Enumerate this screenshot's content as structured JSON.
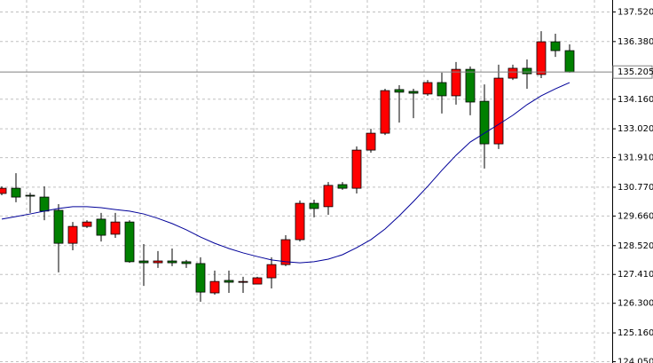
{
  "chart_data": {
    "type": "candlestick",
    "open": [
      130.53,
      130.73,
      130.46,
      130.39,
      129.88,
      128.61,
      129.26,
      129.54,
      128.96,
      129.43,
      127.93,
      127.86,
      127.93,
      127.9,
      127.83,
      126.7,
      127.18,
      127.14,
      127.04,
      127.28,
      127.79,
      128.75,
      130.15,
      130.02,
      130.87,
      130.73,
      132.2,
      132.85,
      134.53,
      134.46,
      134.36,
      134.8,
      134.29,
      135.31,
      134.08,
      132.44,
      134.97,
      135.35,
      135.11,
      136.37,
      136.03
    ],
    "high": [
      130.8,
      131.31,
      130.56,
      130.8,
      130.12,
      129.43,
      129.5,
      129.78,
      129.78,
      129.5,
      128.58,
      128.31,
      128.41,
      127.97,
      128.07,
      127.56,
      127.56,
      127.32,
      127.32,
      128.07,
      128.92,
      130.26,
      130.29,
      130.97,
      130.97,
      132.34,
      133.02,
      134.56,
      134.7,
      134.56,
      134.9,
      135.18,
      135.59,
      135.42,
      134.73,
      135.49,
      135.49,
      135.69,
      136.78,
      136.68,
      136.27
    ],
    "low": [
      130.46,
      130.19,
      129.78,
      129.5,
      127.49,
      128.34,
      129.2,
      128.68,
      128.82,
      127.86,
      126.97,
      127.66,
      127.73,
      127.66,
      126.36,
      126.63,
      126.7,
      126.7,
      127.04,
      126.87,
      127.73,
      128.68,
      129.61,
      129.71,
      130.67,
      130.53,
      132.1,
      132.78,
      133.26,
      133.43,
      134.29,
      133.61,
      133.95,
      133.54,
      131.49,
      132.24,
      134.9,
      134.56,
      134.97,
      135.79,
      135.18
    ],
    "close": [
      130.73,
      130.39,
      130.44,
      129.85,
      128.61,
      129.26,
      129.43,
      128.92,
      129.43,
      127.9,
      127.86,
      127.93,
      127.86,
      127.83,
      126.73,
      127.14,
      127.11,
      127.14,
      127.28,
      127.79,
      128.75,
      130.15,
      129.95,
      130.84,
      130.73,
      132.2,
      132.85,
      134.49,
      134.43,
      134.39,
      134.8,
      134.29,
      135.31,
      134.05,
      132.44,
      134.97,
      135.35,
      135.14,
      136.37,
      136.03,
      135.205
    ],
    "up_color": "#ff0000",
    "down_color": "#008000",
    "moving_average": {
      "color": "#000099",
      "values": [
        129.54,
        129.64,
        129.74,
        129.85,
        129.95,
        130.02,
        130.02,
        129.98,
        129.91,
        129.85,
        129.74,
        129.57,
        129.37,
        129.13,
        128.85,
        128.61,
        128.41,
        128.24,
        128.1,
        127.97,
        127.9,
        127.86,
        127.9,
        128.0,
        128.17,
        128.44,
        128.75,
        129.16,
        129.67,
        130.22,
        130.8,
        131.42,
        132.0,
        132.51,
        132.85,
        133.19,
        133.54,
        133.95,
        134.29,
        134.56,
        134.8
      ]
    },
    "current_price": 135.205,
    "ylim": [
      124.0,
      137.98
    ],
    "yticks": [
      {
        "value": 137.52,
        "label": "137.520"
      },
      {
        "value": 136.38,
        "label": "136.380"
      },
      {
        "value": 134.16,
        "label": "134.160"
      },
      {
        "value": 133.02,
        "label": "133.020"
      },
      {
        "value": 131.91,
        "label": "131.910"
      },
      {
        "value": 130.77,
        "label": "130.770"
      },
      {
        "value": 129.66,
        "label": "129.660"
      },
      {
        "value": 128.52,
        "label": "128.520"
      },
      {
        "value": 127.41,
        "label": "127.410"
      },
      {
        "value": 126.3,
        "label": "126.300"
      },
      {
        "value": 125.16,
        "label": "125.160"
      },
      {
        "value": 124.05,
        "label": "124.050"
      }
    ],
    "grid": true
  }
}
